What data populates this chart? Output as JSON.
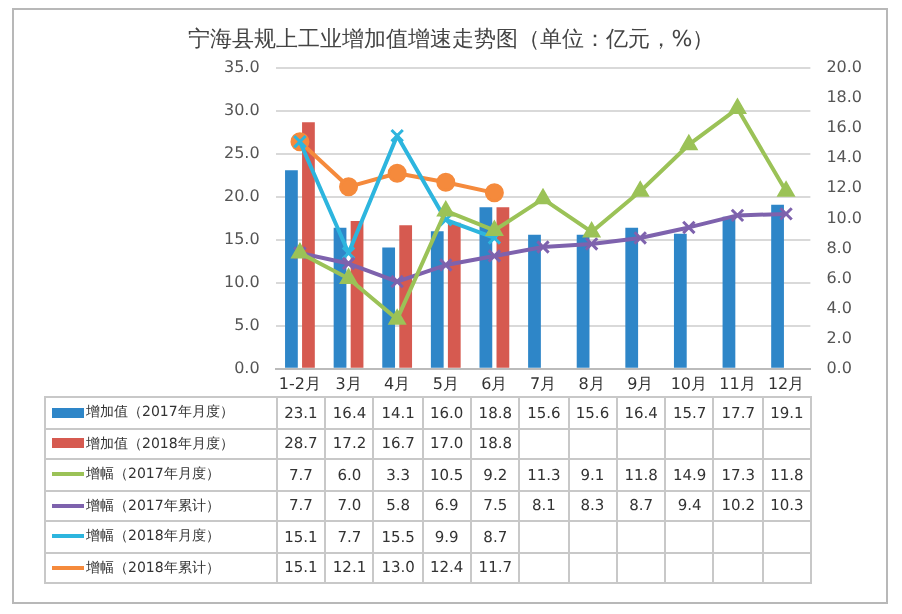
{
  "chart_data": {
    "type": "bar",
    "title": "宁海县规上工业增加值增速走势图（单位：亿元，%）",
    "categories": [
      "1-2月",
      "3月",
      "4月",
      "5月",
      "6月",
      "7月",
      "8月",
      "9月",
      "10月",
      "11月",
      "12月"
    ],
    "series": [
      {
        "name": "增加值（2017年月度）",
        "color": "#2e86c8",
        "values": [
          23.1,
          16.4,
          14.1,
          16.0,
          18.8,
          15.6,
          15.6,
          16.4,
          15.7,
          17.7,
          19.1
        ],
        "value_labels": [
          "23.1",
          "16.4",
          "14.1",
          "16.0",
          "18.8",
          "15.6",
          "15.6",
          "16.4",
          "15.7",
          "17.7",
          "19.1"
        ]
      },
      {
        "name": "增加值（2018年月度）",
        "color": "#d65a50",
        "values": [
          28.7,
          17.2,
          16.7,
          17.0,
          18.8,
          null,
          null,
          null,
          null,
          null,
          null
        ],
        "value_labels": [
          "28.7",
          "17.2",
          "16.7",
          "17.0",
          "18.8",
          null,
          null,
          null,
          null,
          null,
          null
        ]
      },
      {
        "name": "增幅（2017年月度）",
        "type": "line",
        "axis": "y2",
        "marker": "triangle",
        "color": "#9bc257",
        "values": [
          7.7,
          6.0,
          3.3,
          10.5,
          9.2,
          11.3,
          9.1,
          11.8,
          14.9,
          17.3,
          11.8
        ],
        "value_labels": [
          "7.7",
          "6.0",
          "3.3",
          "10.5",
          "9.2",
          "11.3",
          "9.1",
          "11.8",
          "14.9",
          "17.3",
          "11.8"
        ]
      },
      {
        "name": "增幅（2017年累计）",
        "type": "line",
        "axis": "y2",
        "marker": "cross",
        "color": "#7e62ad",
        "values": [
          7.7,
          7.0,
          5.8,
          6.9,
          7.5,
          8.1,
          8.3,
          8.7,
          9.4,
          10.2,
          10.3
        ],
        "value_labels": [
          "7.7",
          "7.0",
          "5.8",
          "6.9",
          "7.5",
          "8.1",
          "8.3",
          "8.7",
          "9.4",
          "10.2",
          "10.3"
        ]
      },
      {
        "name": "增幅（2018年月度）",
        "type": "line",
        "axis": "y2",
        "marker": "cross",
        "color": "#2db5de",
        "values": [
          15.1,
          7.7,
          15.5,
          9.9,
          8.7,
          null,
          null,
          null,
          null,
          null,
          null
        ],
        "value_labels": [
          "15.1",
          "7.7",
          "15.5",
          "9.9",
          "8.7",
          null,
          null,
          null,
          null,
          null,
          null
        ]
      },
      {
        "name": "增幅（2018年累计）",
        "type": "line",
        "axis": "y2",
        "marker": "circle",
        "color": "#f58a3c",
        "values": [
          15.1,
          12.1,
          13.0,
          12.4,
          11.7,
          null,
          null,
          null,
          null,
          null,
          null
        ],
        "value_labels": [
          "15.1",
          "12.1",
          "13.0",
          "12.4",
          "11.7",
          null,
          null,
          null,
          null,
          null,
          null
        ]
      }
    ],
    "ylim": [
      0,
      35
    ],
    "yticks": [
      {
        "value": 0,
        "label": "0.0"
      },
      {
        "value": 5,
        "label": "5.0"
      },
      {
        "value": 10,
        "label": "10.0"
      },
      {
        "value": 15,
        "label": "15.0"
      },
      {
        "value": 20,
        "label": "20.0"
      },
      {
        "value": 25,
        "label": "25.0"
      },
      {
        "value": 30,
        "label": "30.0"
      },
      {
        "value": 35,
        "label": "35.0"
      }
    ],
    "y2lim": [
      0,
      20
    ],
    "y2ticks": [
      {
        "value": 0,
        "label": "0.0"
      },
      {
        "value": 2,
        "label": "2.0"
      },
      {
        "value": 4,
        "label": "4.0"
      },
      {
        "value": 6,
        "label": "6.0"
      },
      {
        "value": 8,
        "label": "8.0"
      },
      {
        "value": 10,
        "label": "10.0"
      },
      {
        "value": 12,
        "label": "12.0"
      },
      {
        "value": 14,
        "label": "14.0"
      },
      {
        "value": 16,
        "label": "16.0"
      },
      {
        "value": 18,
        "label": "18.0"
      },
      {
        "value": 20,
        "label": "20.0"
      }
    ],
    "grid": "y",
    "legend": "bottom",
    "line_style": "solid"
  }
}
